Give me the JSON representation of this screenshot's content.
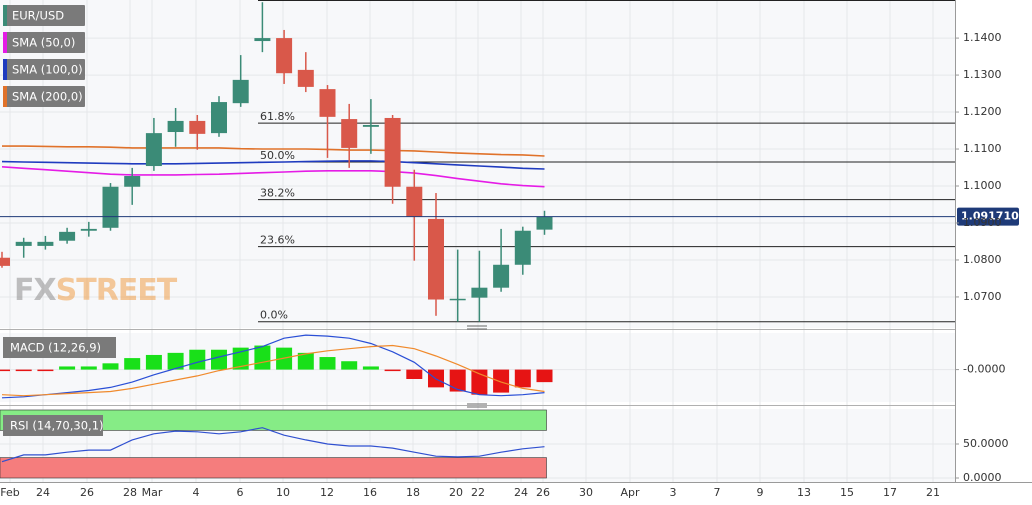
{
  "chart_data": [
    {
      "type": "candlestick",
      "title": "EUR/USD",
      "open": [
        1.0806,
        1.0838,
        1.0838,
        1.0852,
        1.0879,
        1.0887,
        1.0998,
        1.1054,
        1.1146,
        1.1176,
        1.1143,
        1.1224,
        1.1392,
        1.14,
        1.1314,
        1.1262,
        1.1181,
        1.116,
        1.1184,
        1.0998,
        1.0911,
        1.0693,
        1.0698,
        1.0725,
        1.0787,
        1.0882
      ],
      "high": [
        1.0822,
        1.086,
        1.0865,
        1.0887,
        1.0903,
        1.1008,
        1.1049,
        1.1184,
        1.1211,
        1.1192,
        1.1243,
        1.1354,
        1.1497,
        1.1422,
        1.1362,
        1.1273,
        1.1222,
        1.1235,
        1.1192,
        1.1044,
        1.0981,
        1.0828,
        1.0825,
        1.0884,
        1.089,
        1.0933
      ],
      "low": [
        1.0779,
        1.0806,
        1.0828,
        1.0844,
        1.0863,
        1.0879,
        1.0949,
        1.1041,
        1.1106,
        1.1098,
        1.1133,
        1.1214,
        1.1362,
        1.1276,
        1.1254,
        1.1076,
        1.1049,
        1.1087,
        1.0952,
        1.0798,
        1.0649,
        1.0633,
        1.0633,
        1.0714,
        1.076,
        1.0868
      ],
      "close": [
        1.0784,
        1.0849,
        1.0849,
        1.0876,
        1.0884,
        1.0998,
        1.1027,
        1.1143,
        1.1176,
        1.1141,
        1.1227,
        1.1287,
        1.14,
        1.1305,
        1.1268,
        1.1187,
        1.1103,
        1.1165,
        1.0998,
        1.0917,
        1.0693,
        1.0695,
        1.0725,
        1.0787,
        1.0879,
        1.09171
      ],
      "up_color": "#3b8b77",
      "down_color": "#d9584a",
      "series": [
        {
          "name": "SMA (50,0)",
          "color": "#e51ce6",
          "values": [
            1.1052,
            1.1048,
            1.1044,
            1.104,
            1.1036,
            1.1032,
            1.103,
            1.103,
            1.103,
            1.1031,
            1.1032,
            1.1034,
            1.1036,
            1.1038,
            1.104,
            1.1041,
            1.1041,
            1.1041,
            1.1039,
            1.1035,
            1.1028,
            1.102,
            1.1013,
            1.1006,
            1.1001,
            1.0998
          ]
        },
        {
          "name": "SMA (100,0)",
          "color": "#1f3bbf",
          "values": [
            1.1066,
            1.1065,
            1.1064,
            1.1063,
            1.1062,
            1.1061,
            1.106,
            1.106,
            1.106,
            1.1061,
            1.1062,
            1.1063,
            1.1064,
            1.1065,
            1.1066,
            1.1067,
            1.1068,
            1.1068,
            1.1066,
            1.1063,
            1.106,
            1.1057,
            1.1054,
            1.1051,
            1.1048,
            1.1046
          ]
        },
        {
          "name": "SMA (200,0)",
          "color": "#e0722a",
          "values": [
            1.1108,
            1.1108,
            1.1107,
            1.1106,
            1.1106,
            1.1105,
            1.1103,
            1.1103,
            1.1103,
            1.1103,
            1.1103,
            1.1101,
            1.11,
            1.11,
            1.11,
            1.1099,
            1.1097,
            1.1097,
            1.1096,
            1.1095,
            1.1092,
            1.1089,
            1.1087,
            1.1085,
            1.1084,
            1.1081
          ]
        }
      ],
      "fib_levels": [
        {
          "label": "61.8%",
          "value": 1.117
        },
        {
          "label": "50.0%",
          "value": 1.1065
        },
        {
          "label": "38.2%",
          "value": 1.0963
        },
        {
          "label": "23.6%",
          "value": 1.0836
        },
        {
          "label": "0.0%",
          "value": 1.0633
        }
      ],
      "last_price": {
        "value": 1.09171,
        "label": "1.091710"
      },
      "ylim": [
        1.0616,
        1.1503
      ],
      "yticks": [
        {
          "value": 1.07,
          "label": "1.0700"
        },
        {
          "value": 1.08,
          "label": "1.0800"
        },
        {
          "value": 1.09,
          "label": "1.0900"
        },
        {
          "value": 1.1,
          "label": "1.1000"
        },
        {
          "value": 1.11,
          "label": "1.1100"
        },
        {
          "value": 1.12,
          "label": "1.1200"
        },
        {
          "value": 1.13,
          "label": "1.1300"
        },
        {
          "value": 1.14,
          "label": "1.1400"
        }
      ],
      "x_labels": [
        "Feb",
        "24",
        "26",
        "28",
        "Mar",
        "4",
        "6",
        "10",
        "12",
        "16",
        "18",
        "20",
        "22",
        "24",
        "26",
        "30",
        "Apr",
        "3",
        "7",
        "9",
        "13",
        "15",
        "17",
        "21"
      ],
      "logo": [
        "FX",
        "STREET"
      ]
    },
    {
      "type": "macd",
      "title": "MACD (12,26,9)",
      "histogram": [
        -0.0002,
        -0.0002,
        -0.0002,
        0.0006,
        0.0006,
        0.0012,
        0.0022,
        0.0028,
        0.0032,
        0.0038,
        0.0038,
        0.0042,
        0.0046,
        0.0042,
        0.0032,
        0.0024,
        0.0016,
        0.0006,
        -0.0002,
        -0.0018,
        -0.0034,
        -0.0042,
        -0.0048,
        -0.0044,
        -0.0034,
        -0.0024
      ],
      "up_color": "#19e019",
      "down_color": "#e61414",
      "series": [
        {
          "color": "#2a4fd6",
          "values": [
            -0.0054,
            -0.0052,
            -0.0048,
            -0.0044,
            -0.004,
            -0.0034,
            -0.0024,
            -0.001,
            0.0002,
            0.0014,
            0.0024,
            0.0034,
            0.0044,
            0.006,
            0.0066,
            0.0064,
            0.006,
            0.005,
            0.0034,
            0.0014,
            -0.0018,
            -0.0038,
            -0.0048,
            -0.005,
            -0.0048,
            -0.0044
          ]
        },
        {
          "color": "#f08a2c",
          "values": [
            -0.0048,
            -0.005,
            -0.0048,
            -0.0046,
            -0.0044,
            -0.0042,
            -0.0036,
            -0.0028,
            -0.002,
            -0.0012,
            -0.0002,
            0.0006,
            0.0014,
            0.0022,
            0.003,
            0.0036,
            0.004,
            0.0044,
            0.0046,
            0.004,
            0.0026,
            0.001,
            -0.0008,
            -0.0024,
            -0.0036,
            -0.0042
          ]
        }
      ],
      "ylim": [
        -0.0062,
        0.007
      ],
      "yticks": [
        {
          "value": 0,
          "label": "-0.0000"
        }
      ]
    },
    {
      "type": "rsi",
      "title": "RSI (14,70,30,1)",
      "series": [
        {
          "color": "#3050d0",
          "values": [
            24,
            34,
            34,
            38,
            41,
            41,
            56,
            65,
            69,
            68,
            65,
            68,
            74,
            63,
            56,
            50,
            47,
            47,
            44,
            38,
            32,
            31,
            32,
            38,
            43,
            46
          ]
        }
      ],
      "overbought": 70,
      "oversold": 30,
      "band_colors": [
        "#86ec86",
        "#f57d7d"
      ],
      "ylim": [
        0,
        100
      ],
      "yticks": [
        {
          "value": 50,
          "label": "50.0000"
        },
        {
          "value": 0,
          "label": "0.0000"
        }
      ]
    }
  ]
}
